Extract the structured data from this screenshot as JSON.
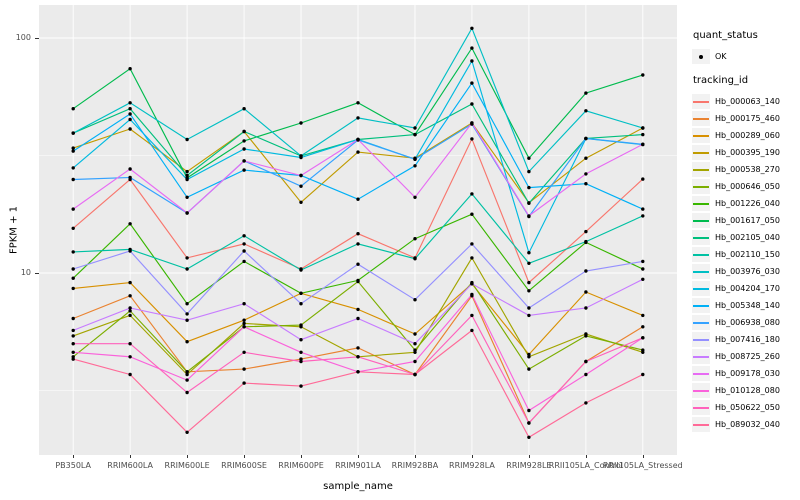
{
  "axes": {
    "x_title": "sample_name",
    "y_title": "FPKM + 1",
    "y_tick_labels": [
      "100",
      "10"
    ]
  },
  "legend": {
    "quant_status_title": "quant_status",
    "quant_status_items": [
      "OK"
    ],
    "tracking_id_title": "tracking_id"
  },
  "chart_data": {
    "type": "line",
    "title": "",
    "xlabel": "sample_name",
    "ylabel": "FPKM + 1",
    "y_scale": "log10",
    "y_major_ticks": [
      10,
      100
    ],
    "y_minor_ticks": [
      3.162,
      31.62
    ],
    "grid": "on",
    "legend_position": "right",
    "point_color": "#000000",
    "panel_background": "#EBEBEB",
    "categories": [
      "PB350LA",
      "RRIM600LA",
      "RRIM600LE",
      "RRIM600SE",
      "RRIM600PE",
      "RRIM901LA",
      "RRIM928BA",
      "RRIM928LA",
      "RRIM928LE",
      "RRII105LA_Control",
      "RRII105LA_Stressed"
    ],
    "series": [
      {
        "name": "Hb_000063_140",
        "color": "#F8766D",
        "values": [
          15.5,
          25,
          11.6,
          13.3,
          10.4,
          14.7,
          11.6,
          37.2,
          9.1,
          15,
          25.1
        ]
      },
      {
        "name": "Hb_000175_460",
        "color": "#EA8331",
        "values": [
          6.4,
          8,
          3.8,
          3.9,
          4.3,
          4.8,
          3.7,
          8,
          2.3,
          4.2,
          5.9
        ]
      },
      {
        "name": "Hb_000289_060",
        "color": "#D89000",
        "values": [
          8.6,
          9.1,
          5.1,
          6.3,
          8.2,
          7,
          5.5,
          9,
          4.5,
          8.3,
          6.6
        ]
      },
      {
        "name": "Hb_000395_190",
        "color": "#C09B00",
        "values": [
          34,
          41,
          27,
          40,
          20,
          32.7,
          30.8,
          43.5,
          19.9,
          30.8,
          41.4
        ]
      },
      {
        "name": "Hb_000538_270",
        "color": "#A3A500",
        "values": [
          5.4,
          6.6,
          3.7,
          6.1,
          5.9,
          4.4,
          4.6,
          11.6,
          4.4,
          5.5,
          4.6
        ]
      },
      {
        "name": "Hb_000646_050",
        "color": "#7CAE00",
        "values": [
          4.4,
          6.9,
          3.8,
          5.9,
          6,
          9.2,
          4.7,
          9.1,
          3.9,
          5.4,
          4.7
        ]
      },
      {
        "name": "Hb_001226_040",
        "color": "#39B600",
        "values": [
          9.5,
          16.2,
          7.4,
          11.2,
          8.2,
          9.3,
          14,
          17.8,
          8.4,
          13.5,
          10.4
        ]
      },
      {
        "name": "Hb_001617_050",
        "color": "#00BB4E",
        "values": [
          50,
          74,
          25.4,
          36.5,
          43.5,
          53,
          38.8,
          90.6,
          30.8,
          58.3,
          69.6
        ]
      },
      {
        "name": "Hb_002105_040",
        "color": "#00BF7D",
        "values": [
          39.4,
          50,
          26,
          40,
          31.5,
          37,
          38.8,
          52.4,
          19.8,
          37.4,
          38.8
        ]
      },
      {
        "name": "Hb_002110_150",
        "color": "#00C1A3",
        "values": [
          12.3,
          12.6,
          10.4,
          14.4,
          10.3,
          13.3,
          11.5,
          21.7,
          11,
          13.6,
          17.5
        ]
      },
      {
        "name": "Hb_003976_030",
        "color": "#00BFC4",
        "values": [
          39.4,
          53,
          37,
          50,
          31.5,
          45.7,
          41.4,
          110,
          27,
          49,
          41.4
        ]
      },
      {
        "name": "Hb_004204_170",
        "color": "#00BAE0",
        "values": [
          28,
          45,
          25,
          33.7,
          31,
          37,
          30.5,
          79.8,
          12.2,
          37.3,
          35.2
        ]
      },
      {
        "name": "Hb_005348_140",
        "color": "#00B0F6",
        "values": [
          33,
          47.5,
          21,
          27.4,
          26,
          20.6,
          28.6,
          64.3,
          23.1,
          24,
          18.7
        ]
      },
      {
        "name": "Hb_006938_080",
        "color": "#35A2FF",
        "values": [
          25,
          25.5,
          18,
          30,
          23.4,
          36.8,
          30.5,
          43,
          17.4,
          37.4,
          35.3
        ]
      },
      {
        "name": "Hb_007416_180",
        "color": "#9590FF",
        "values": [
          10.4,
          12.4,
          6.7,
          12.4,
          7.4,
          10.9,
          7.7,
          13.3,
          7.1,
          10.2,
          11.2
        ]
      },
      {
        "name": "Hb_008725_260",
        "color": "#C77CFF",
        "values": [
          5.7,
          7.1,
          6.3,
          7.4,
          5.2,
          6.4,
          5,
          9,
          6.6,
          7.1,
          9.4
        ]
      },
      {
        "name": "Hb_009178_030",
        "color": "#E76BF3",
        "values": [
          18.7,
          27.7,
          18,
          30,
          26,
          37,
          21,
          43.5,
          17.5,
          26.4,
          35.3
        ]
      },
      {
        "name": "Hb_010128_080",
        "color": "#FA62DB",
        "values": [
          4.6,
          4.4,
          3.5,
          5.9,
          4.6,
          3.8,
          4.2,
          8.1,
          2.6,
          3.7,
          5.3
        ]
      },
      {
        "name": "Hb_050622_050",
        "color": "#FF62BC",
        "values": [
          5,
          5,
          3.1,
          4.6,
          4.2,
          4.4,
          3.7,
          6.6,
          2.3,
          4.2,
          5.3
        ]
      },
      {
        "name": "Hb_089032_040",
        "color": "#FF6A98",
        "values": [
          4.3,
          3.7,
          2.1,
          3.4,
          3.3,
          3.8,
          3.7,
          5.7,
          2,
          2.8,
          3.7
        ]
      }
    ]
  }
}
